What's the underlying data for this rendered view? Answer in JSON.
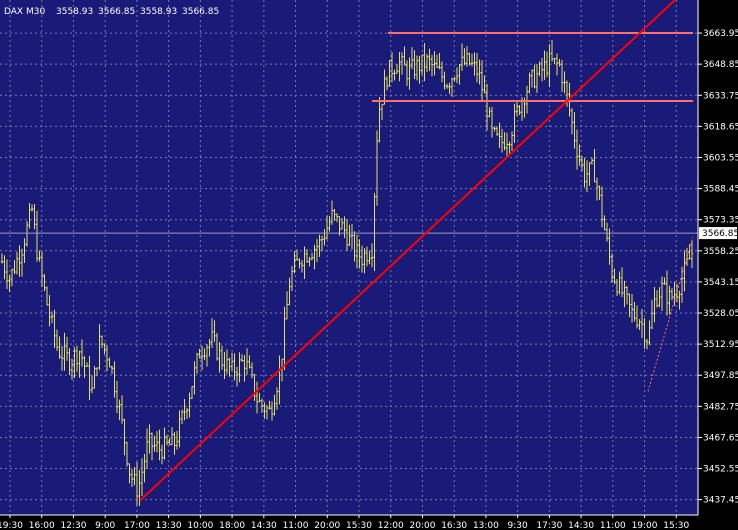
{
  "header": {
    "symbol": "DAX",
    "timeframe": "M30",
    "open": "3558.93",
    "high": "3566.85",
    "low": "3558.93",
    "close": "3566.85"
  },
  "colors": {
    "background": "#1a1a78",
    "grid": "#7878b0",
    "bars": "#e0e060",
    "trendline": "#ff0000",
    "resistance": "#ff7070",
    "price_line": "#a0a0c0",
    "axis_text": "#ffffff",
    "price_box_bg": "#ffffff",
    "price_box_text": "#000000"
  },
  "chart_data": {
    "type": "ohlc",
    "title": "",
    "xlabel": "",
    "ylabel": "",
    "grid": true,
    "ylim": [
      3430,
      3680
    ],
    "y_ticks": [
      "3663.95",
      "3648.85",
      "3633.75",
      "3618.65",
      "3603.55",
      "3588.45",
      "3573.35",
      "3558.25",
      "3543.15",
      "3528.05",
      "3512.95",
      "3497.85",
      "3482.75",
      "3467.65",
      "3452.55",
      "3437.45"
    ],
    "x_ticks": [
      "19:30",
      "16:00",
      "12:30",
      "9:00",
      "17:00",
      "13:30",
      "10:00",
      "18:00",
      "14:30",
      "11:00",
      "20:00",
      "15:30",
      "12:00",
      "20:00",
      "16:30",
      "13:00",
      "9:30",
      "17:30",
      "14:30",
      "11:00",
      "19:00",
      "15:30"
    ],
    "current_price": "3566.85",
    "profile": [
      [
        0,
        3555
      ],
      [
        10,
        3545
      ],
      [
        22,
        3560
      ],
      [
        32,
        3578
      ],
      [
        38,
        3555
      ],
      [
        48,
        3530
      ],
      [
        58,
        3510
      ],
      [
        70,
        3505
      ],
      [
        80,
        3510
      ],
      [
        92,
        3490
      ],
      [
        100,
        3515
      ],
      [
        110,
        3505
      ],
      [
        120,
        3480
      ],
      [
        130,
        3450
      ],
      [
        138,
        3442
      ],
      [
        148,
        3465
      ],
      [
        160,
        3462
      ],
      [
        175,
        3465
      ],
      [
        190,
        3490
      ],
      [
        200,
        3510
      ],
      [
        212,
        3515
      ],
      [
        222,
        3505
      ],
      [
        232,
        3500
      ],
      [
        245,
        3505
      ],
      [
        258,
        3485
      ],
      [
        270,
        3480
      ],
      [
        280,
        3500
      ],
      [
        290,
        3545
      ],
      [
        300,
        3555
      ],
      [
        310,
        3558
      ],
      [
        320,
        3562
      ],
      [
        332,
        3575
      ],
      [
        345,
        3568
      ],
      [
        355,
        3558
      ],
      [
        362,
        3555
      ],
      [
        372,
        3560
      ],
      [
        378,
        3625
      ],
      [
        388,
        3645
      ],
      [
        398,
        3650
      ],
      [
        408,
        3645
      ],
      [
        418,
        3648
      ],
      [
        428,
        3650
      ],
      [
        438,
        3645
      ],
      [
        448,
        3640
      ],
      [
        458,
        3648
      ],
      [
        468,
        3650
      ],
      [
        478,
        3645
      ],
      [
        486,
        3630
      ],
      [
        492,
        3615
      ],
      [
        500,
        3610
      ],
      [
        510,
        3615
      ],
      [
        520,
        3630
      ],
      [
        530,
        3640
      ],
      [
        540,
        3645
      ],
      [
        550,
        3650
      ],
      [
        560,
        3648
      ],
      [
        568,
        3630
      ],
      [
        576,
        3610
      ],
      [
        584,
        3595
      ],
      [
        594,
        3598
      ],
      [
        604,
        3570
      ],
      [
        612,
        3548
      ],
      [
        622,
        3538
      ],
      [
        632,
        3528
      ],
      [
        640,
        3525
      ],
      [
        648,
        3515
      ],
      [
        655,
        3535
      ],
      [
        662,
        3540
      ],
      [
        670,
        3535
      ],
      [
        678,
        3540
      ],
      [
        686,
        3550
      ],
      [
        694,
        3560
      ]
    ],
    "trendline": {
      "from_x": 140,
      "from_y": 3437,
      "to_x": 675,
      "to_y": 3680
    },
    "resistance_lines": [
      {
        "from_x": 388,
        "to_x": 693,
        "y": 3664
      },
      {
        "from_x": 372,
        "to_x": 693,
        "y": 3631
      }
    ],
    "dotted_trendline": {
      "from_x": 648,
      "from_y": 3490,
      "to_x": 693,
      "to_y": 3565
    }
  }
}
